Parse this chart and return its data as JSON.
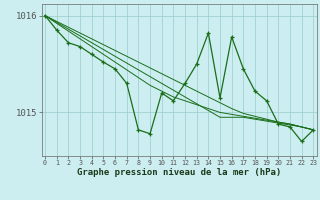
{
  "x": [
    0,
    1,
    2,
    3,
    4,
    5,
    6,
    7,
    8,
    9,
    10,
    11,
    12,
    13,
    14,
    15,
    16,
    17,
    18,
    19,
    20,
    21,
    22,
    23
  ],
  "y_main": [
    1016.0,
    1015.85,
    1015.72,
    1015.68,
    1015.6,
    1015.52,
    1015.45,
    1015.3,
    1014.82,
    1014.78,
    1015.2,
    1015.12,
    1015.3,
    1015.5,
    1015.82,
    1015.15,
    1015.78,
    1015.45,
    1015.22,
    1015.12,
    1014.88,
    1014.85,
    1014.7,
    1014.82
  ],
  "y_smooth1": [
    1016.0,
    1015.93,
    1015.86,
    1015.79,
    1015.72,
    1015.65,
    1015.58,
    1015.51,
    1015.44,
    1015.37,
    1015.3,
    1015.23,
    1015.16,
    1015.09,
    1015.02,
    1014.95,
    1014.95,
    1014.95,
    1014.93,
    1014.91,
    1014.89,
    1014.87,
    1014.85,
    1014.82
  ],
  "y_smooth2": [
    1016.0,
    1015.94,
    1015.88,
    1015.82,
    1015.76,
    1015.7,
    1015.64,
    1015.58,
    1015.52,
    1015.46,
    1015.4,
    1015.34,
    1015.28,
    1015.22,
    1015.16,
    1015.1,
    1015.04,
    1014.99,
    1014.96,
    1014.93,
    1014.9,
    1014.88,
    1014.85,
    1014.82
  ],
  "y_smooth3": [
    1016.0,
    1015.92,
    1015.84,
    1015.76,
    1015.68,
    1015.6,
    1015.52,
    1015.44,
    1015.36,
    1015.28,
    1015.22,
    1015.16,
    1015.12,
    1015.08,
    1015.04,
    1015.0,
    1014.98,
    1014.96,
    1014.94,
    1014.92,
    1014.9,
    1014.88,
    1014.85,
    1014.82
  ],
  "line_color": "#1a6e1a",
  "bg_color": "#cceef0",
  "grid_color": "#99cccc",
  "xlabel": "Graphe pression niveau de la mer (hPa)",
  "ylim": [
    1014.55,
    1016.12
  ],
  "xlim": [
    -0.3,
    23.3
  ]
}
